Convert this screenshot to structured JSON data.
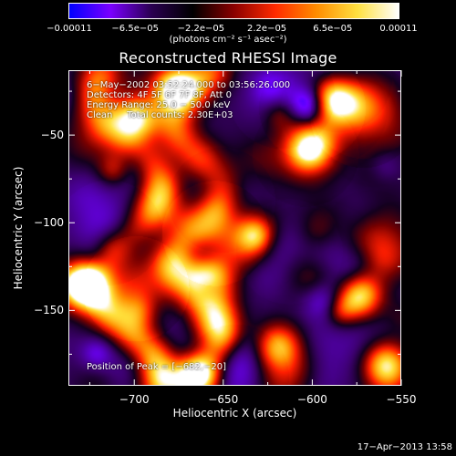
{
  "chart_data": {
    "type": "heatmap",
    "title": "Reconstructed RHESSI Image",
    "xlabel": "Heliocentric X (arcsec)",
    "ylabel": "Heliocentric Y (arcsec)",
    "xlim": [
      -737,
      -550
    ],
    "ylim": [
      -193,
      -13
    ],
    "x_ticks": [
      -700,
      -650,
      -600,
      -550
    ],
    "x_tick_labels": [
      "−700",
      "−650",
      "−600",
      "−550"
    ],
    "y_ticks": [
      -50,
      -100,
      -150
    ],
    "y_tick_labels": [
      "−50",
      "−100",
      "−150"
    ],
    "colorbar": {
      "min": -0.00011,
      "max": 0.00011,
      "tick_labels": [
        "−0.00011",
        "−6.5e−05",
        "−2.2e−05",
        "2.2e−05",
        "6.5e−05",
        "0.00011"
      ],
      "units_label": "(photons cm⁻² s⁻¹ asec⁻²)",
      "colors": [
        "#0000ff",
        "#7a00ff",
        "#2a0050",
        "#000000",
        "#8a0000",
        "#ff2a00",
        "#ff8c00",
        "#ffe040",
        "#ffffff"
      ]
    },
    "annotations": {
      "time_range": "6−May−2002 03:52:24.000 to 03:56:26.000",
      "detectors": "Detectors: 4F 5F 6F 7F 8F, Att 0",
      "energy_range": "Energy Range: 25.0 − 50.0 keV",
      "clean_counts": "Clean     Total counts: 2.30E+03",
      "peak_position": "Position of Peak = [−682,−20]"
    },
    "peak": {
      "x": -682,
      "y": -20
    },
    "bright_sources": [
      {
        "x": -732,
        "y": -135,
        "level": 0.95
      },
      {
        "x": -664,
        "y": -187,
        "level": 0.95
      },
      {
        "x": -700,
        "y": -40,
        "level": 0.85
      },
      {
        "x": -678,
        "y": -22,
        "level": 0.9
      },
      {
        "x": -660,
        "y": -130,
        "level": 0.8
      },
      {
        "x": -590,
        "y": -30,
        "level": 0.8
      },
      {
        "x": -575,
        "y": -140,
        "level": 0.85
      },
      {
        "x": -560,
        "y": -180,
        "level": 0.8
      },
      {
        "x": -600,
        "y": -55,
        "level": 0.7
      },
      {
        "x": -620,
        "y": -170,
        "level": 0.7
      }
    ]
  },
  "footer": {
    "date": "17−Apr−2013 13:58"
  }
}
